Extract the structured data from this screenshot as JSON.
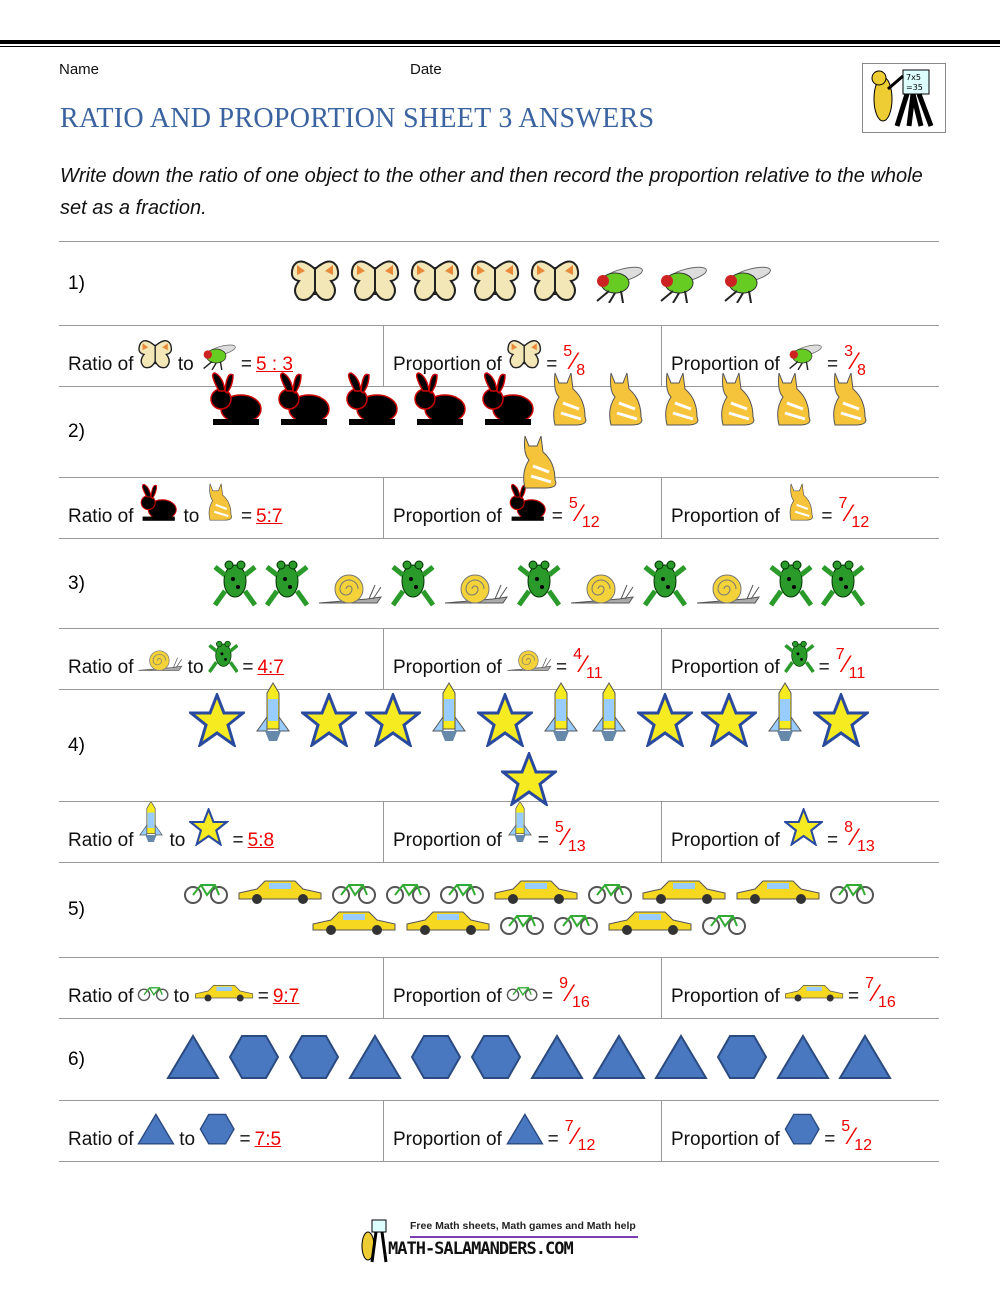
{
  "header": {
    "name_label": "Name",
    "date_label": "Date",
    "title": "RATIO AND PROPORTION SHEET 3 ANSWERS",
    "instructions": "Write down the ratio of one object to the other and then record the proportion relative to the whole set as a fraction."
  },
  "labels": {
    "ratio_of": "Ratio of",
    "to": "to",
    "proportion_of": "Proportion of",
    "equals": "="
  },
  "problems": [
    {
      "number": "1)",
      "a": "butterfly",
      "b": "fly",
      "sequence": [
        "butterfly",
        "butterfly",
        "butterfly",
        "butterfly",
        "butterfly",
        "fly",
        "fly",
        "fly"
      ],
      "ratio": "5 : 3",
      "prop_a": {
        "num": "5",
        "den": "8"
      },
      "prop_b": {
        "num": "3",
        "den": "8"
      }
    },
    {
      "number": "2)",
      "a": "rabbit",
      "b": "cat",
      "sequence": [
        "rabbit",
        "rabbit",
        "rabbit",
        "rabbit",
        "rabbit",
        "cat",
        "cat",
        "cat",
        "cat",
        "cat",
        "cat",
        "cat"
      ],
      "ratio": "5:7",
      "prop_a": {
        "num": "5",
        "den": "12"
      },
      "prop_b": {
        "num": "7",
        "den": "12"
      }
    },
    {
      "number": "3)",
      "a": "snail",
      "b": "frog",
      "sequence": [
        "frog",
        "frog",
        "snail",
        "frog",
        "snail",
        "frog",
        "snail",
        "frog",
        "snail",
        "frog",
        "frog"
      ],
      "ratio": "4:7",
      "prop_a": {
        "num": "4",
        "den": "11"
      },
      "prop_b": {
        "num": "7",
        "den": "11"
      }
    },
    {
      "number": "4)",
      "a": "rocket",
      "b": "star",
      "sequence": [
        "star",
        "rocket",
        "star",
        "star",
        "rocket",
        "star",
        "rocket",
        "rocket",
        "star",
        "star",
        "rocket",
        "star",
        "star"
      ],
      "ratio": "5:8",
      "prop_a": {
        "num": "5",
        "den": "13"
      },
      "prop_b": {
        "num": "8",
        "den": "13"
      }
    },
    {
      "number": "5)",
      "a": "bicycle",
      "b": "car",
      "sequence": [
        "bicycle",
        "car",
        "bicycle",
        "bicycle",
        "bicycle",
        "car",
        "bicycle",
        "car",
        "car",
        "bicycle",
        "car",
        "car",
        "bicycle",
        "bicycle",
        "car",
        "bicycle"
      ],
      "ratio": "9:7",
      "prop_a": {
        "num": "9",
        "den": "16"
      },
      "prop_b": {
        "num": "7",
        "den": "16"
      }
    },
    {
      "number": "6)",
      "a": "triangle",
      "b": "hexagon",
      "sequence": [
        "triangle",
        "hexagon",
        "hexagon",
        "triangle",
        "hexagon",
        "hexagon",
        "triangle",
        "triangle",
        "triangle",
        "hexagon",
        "triangle",
        "triangle"
      ],
      "ratio": "7:5",
      "prop_a": {
        "num": "7",
        "den": "12"
      },
      "prop_b": {
        "num": "5",
        "den": "12"
      }
    }
  ],
  "footer": {
    "tagline": "Free Math sheets, Math games and Math help",
    "site": "MATH-SALAMANDERS.COM"
  },
  "colors": {
    "title": "#3a63a0",
    "answer": "#e00000",
    "shape": "#4a78c0"
  }
}
